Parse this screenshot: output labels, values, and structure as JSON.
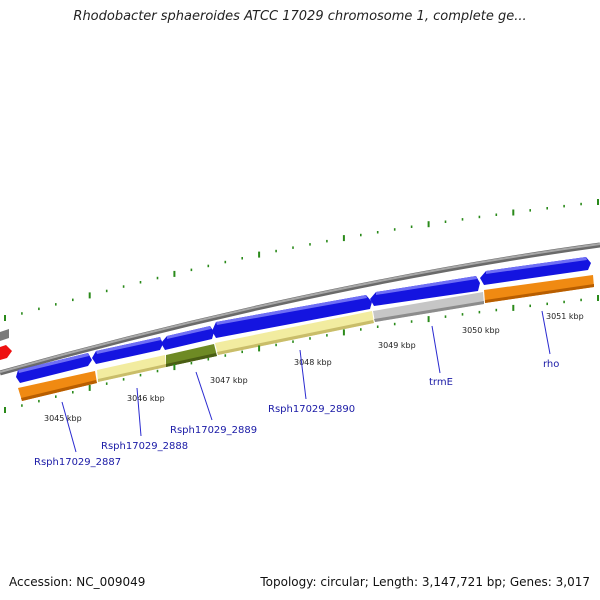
{
  "title": "Rhodobacter sphaeroides ATCC 17029 chromosome 1, complete ge...",
  "accession": "Accession: NC_009049",
  "summary": "Topology: circular; Length: 3,147,721 bp; Genes: 3,017",
  "colors": {
    "blue": "#1414e0",
    "orange": "#f08a12",
    "yellow": "#f2eca0",
    "olive": "#6e8a24",
    "gray": "#c6c6c6",
    "red": "#ee1111",
    "backbone": "#8a8a8a",
    "ticks": "#2a8a1a",
    "label": "#1a1aa6"
  },
  "kbp_labels": [
    "3045 kbp",
    "3046 kbp",
    "3047 kbp",
    "3048 kbp",
    "3049 kbp",
    "3050 kbp",
    "3051 kbp"
  ],
  "gene_labels": [
    "Rsph17029_2887",
    "Rsph17029_2888",
    "Rsph17029_2889",
    "Rsph17029_2890",
    "trmE",
    "rho"
  ]
}
